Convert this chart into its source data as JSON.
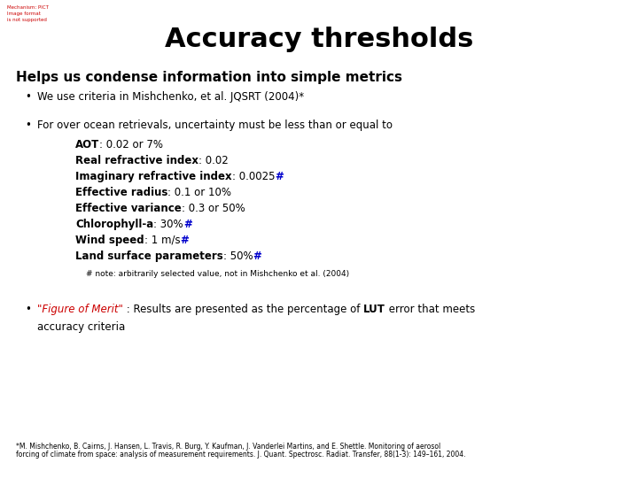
{
  "title": "Accuracy thresholds",
  "title_fontsize": 22,
  "subtitle": "Helps us condense information into simple metrics",
  "subtitle_fontsize": 11,
  "body_fontsize": 8.5,
  "small_fontsize": 7.0,
  "footnote_fontsize": 5.5,
  "background_color": "#ffffff",
  "text_color": "#000000",
  "red_color": "#cc0000",
  "blue_color": "#0000cd",
  "logo_text": "Mechanism: PICT\nImage format\nis not supported",
  "logo_fontsize": 4.0,
  "bullet1": "We use criteria in Mishchenko, et al. JQSRT (2004)*",
  "bullet2_intro": "For over ocean retrievals, uncertainty must be less than or equal to",
  "bullet2_items": [
    {
      "bold": "AOT",
      "rest": ": 0.02 or 7%",
      "hash": false
    },
    {
      "bold": "Real refractive index",
      "rest": ": 0.02",
      "hash": false
    },
    {
      "bold": "Imaginary refractive index",
      "rest": ": 0.0025",
      "hash": true
    },
    {
      "bold": "Effective radius",
      "rest": ": 0.1 or 10%",
      "hash": false
    },
    {
      "bold": "Effective variance",
      "rest": ": 0.3 or 50%",
      "hash": false
    },
    {
      "bold": "Chlorophyll-a",
      "rest": ": 30%",
      "hash": true
    },
    {
      "bold": "Wind speed",
      "rest": ": 1 m/s",
      "hash": true
    },
    {
      "bold": "Land surface parameters",
      "rest": ": 50%",
      "hash": true
    }
  ],
  "hash_note": "# note: arbitrarily selected value, not in Mishchenko et al. (2004)",
  "bullet3_red": "\"Figure of Merit\"",
  "bullet3_rest1": " : Results are presented as the percentage of ",
  "bullet3_bold": "LUT",
  "bullet3_rest2": " error that meets",
  "bullet3_line2": "accuracy criteria",
  "footnote_line1": "*M. Mishchenko, B. Cairns, J. Hansen, L. Travis, R. Burg, Y. Kaufman, J. Vanderlei Martins, and E. Shettle. Monitoring of aerosol",
  "footnote_line2": "forcing of climate from space: analysis of measurement requirements. J. Quant. Spectrosc. Radiat. Transfer, 88(1-3): 149–161, 2004."
}
